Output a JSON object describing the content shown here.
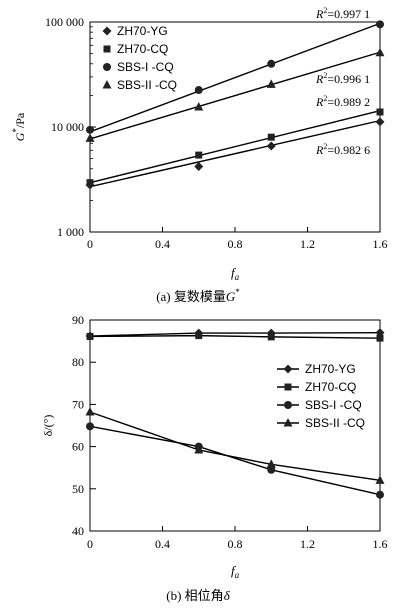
{
  "chart_data": [
    {
      "type": "line",
      "subtype": "scatter-with-trendlines",
      "xlabel": "f",
      "xlabel_sub": "a",
      "ylabel": "G",
      "ylabel_sup": "*",
      "ylabel_unit": "/Pa",
      "yscale": "log",
      "xlim": [
        0,
        1.6
      ],
      "ylim": [
        1000,
        100000
      ],
      "x_ticks": [
        "0",
        "0.4",
        "0.8",
        "1.2",
        "1.6"
      ],
      "y_ticks": [
        {
          "value": 1000,
          "label": "1 000"
        },
        {
          "value": 10000,
          "label": "10 000"
        },
        {
          "value": 100000,
          "label": "100 000"
        }
      ],
      "legend_position": "top-left",
      "caption": "(a) 复数模量",
      "caption_symbol": "G",
      "caption_sup": "*",
      "series": [
        {
          "name": "ZH70-YG",
          "marker": "diamond",
          "x": [
            0,
            0.6,
            1.0,
            1.6
          ],
          "y": [
            2800,
            4200,
            6600,
            11200
          ],
          "trend": [
            2700,
            11500
          ]
        },
        {
          "name": "ZH70-CQ",
          "marker": "square",
          "x": [
            0,
            0.6,
            1.0,
            1.6
          ],
          "y": [
            2950,
            5400,
            8000,
            13900
          ],
          "trend": [
            2950,
            14300
          ]
        },
        {
          "name": "SBS-I -CQ",
          "marker": "circle",
          "x": [
            0,
            0.6,
            1.0,
            1.6
          ],
          "y": [
            9400,
            22500,
            40000,
            95000
          ],
          "trend": [
            9000,
            97000
          ]
        },
        {
          "name": "SBS-II -CQ",
          "marker": "triangle",
          "x": [
            0,
            0.6,
            1.0,
            1.6
          ],
          "y": [
            7800,
            15500,
            25500,
            51000
          ],
          "trend": [
            7700,
            51500
          ]
        }
      ],
      "annotations": [
        {
          "r": "R",
          "sup": "2",
          "text": "=0.997 1",
          "series": "SBS-I -CQ"
        },
        {
          "r": "R",
          "sup": "2",
          "text": "=0.996 1",
          "series": "SBS-II -CQ"
        },
        {
          "r": "R",
          "sup": "2",
          "text": "=0.989 2",
          "series": "ZH70-CQ"
        },
        {
          "r": "R",
          "sup": "2",
          "text": "=0.982 6",
          "series": "ZH70-YG"
        }
      ]
    },
    {
      "type": "line",
      "xlabel": "f",
      "xlabel_sub": "a",
      "ylabel": "δ/(°)",
      "xlim": [
        0,
        1.6
      ],
      "ylim": [
        40,
        90
      ],
      "x_ticks": [
        "0",
        "0.4",
        "0.8",
        "1.2",
        "1.6"
      ],
      "y_ticks": [
        "40",
        "50",
        "60",
        "70",
        "80",
        "90"
      ],
      "legend_position": "right",
      "caption": "(b) 相位角",
      "caption_symbol": "δ",
      "series": [
        {
          "name": "ZH70-YG",
          "marker": "diamond",
          "x": [
            0,
            0.6,
            1.0,
            1.6
          ],
          "y": [
            86.2,
            86.9,
            86.9,
            87.0
          ]
        },
        {
          "name": "ZH70-CQ",
          "marker": "square",
          "x": [
            0,
            0.6,
            1.0,
            1.6
          ],
          "y": [
            86.1,
            86.3,
            86.0,
            85.7
          ]
        },
        {
          "name": "SBS-I -CQ",
          "marker": "circle",
          "x": [
            0,
            0.6,
            1.0,
            1.6
          ],
          "y": [
            64.8,
            60.0,
            54.5,
            48.6
          ]
        },
        {
          "name": "SBS-II -CQ",
          "marker": "triangle",
          "x": [
            0,
            0.6,
            1.0,
            1.6
          ],
          "y": [
            68.2,
            59.2,
            55.8,
            52.0
          ]
        }
      ]
    }
  ]
}
